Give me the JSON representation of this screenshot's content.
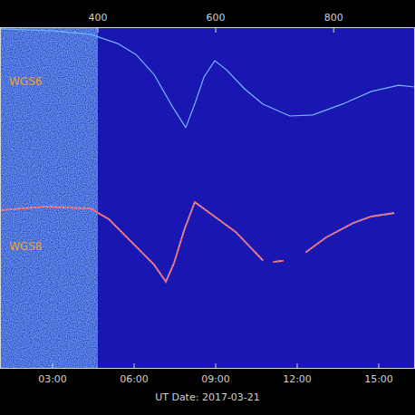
{
  "chart_data": {
    "type": "line",
    "x_label": "UT Date: 2017-03-21",
    "xlim": [
      1.0667,
      16.3333
    ],
    "xticks": [
      {
        "value": 3,
        "label": "03:00"
      },
      {
        "value": 6,
        "label": "06:00"
      },
      {
        "value": 9,
        "label": "09:00"
      },
      {
        "value": 12,
        "label": "12:00"
      },
      {
        "value": 15,
        "label": "15:00"
      }
    ],
    "x2lim": [
      234,
      938
    ],
    "x2ticks": [
      400,
      600,
      800
    ],
    "ylim": [
      0,
      100
    ],
    "tick_labels": "x",
    "grid": false,
    "shaded_x": [
      1.0667,
      4.6667
    ],
    "series": [
      {
        "name": "WGS6",
        "color": "#74b6ff",
        "line_style": "solid",
        "x": [
          1.07,
          2.07,
          3.07,
          4.4,
          5.4,
          6.07,
          6.73,
          7.4,
          7.9,
          8.23,
          8.57,
          8.97,
          9.4,
          10.07,
          10.73,
          11.73,
          12.57,
          13.73,
          14.73,
          15.73,
          16.33
        ],
        "values": [
          99.5,
          99.2,
          98.9,
          97.9,
          95.2,
          92.0,
          86.2,
          76.9,
          70.6,
          77.5,
          85.4,
          90.2,
          87.5,
          81.9,
          77.5,
          74.0,
          74.3,
          77.7,
          81.2,
          83.0,
          82.5
        ]
      },
      {
        "name": "WGS8",
        "color": "#ff5a5a",
        "line_style": "dotted",
        "x": [
          1.07,
          2.73,
          4.4,
          5.07,
          6.07,
          6.73,
          7.17,
          7.47,
          7.83,
          8.23,
          8.73,
          9.73,
          10.73,
          10.93,
          11.13,
          11.47,
          11.9,
          12.33,
          13.07,
          14.07,
          14.73,
          15.57
        ],
        "values": [
          46.4,
          47.5,
          46.9,
          43.8,
          35.8,
          30.5,
          25.5,
          31.0,
          40.3,
          48.8,
          45.9,
          40.1,
          31.8,
          null,
          31.3,
          31.6,
          null,
          34.2,
          38.5,
          42.7,
          44.6,
          45.6
        ]
      }
    ]
  }
}
